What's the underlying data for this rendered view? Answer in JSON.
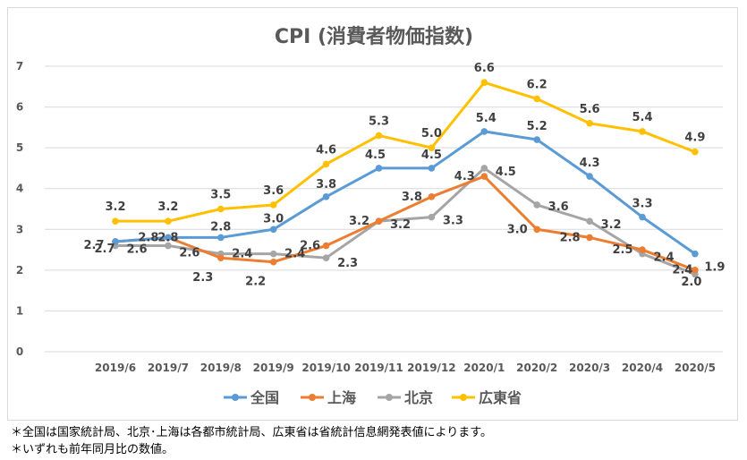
{
  "chart_data": {
    "type": "line",
    "title": "CPI (消費者物価指数)",
    "categories": [
      "2019/6",
      "2019/7",
      "2019/8",
      "2019/9",
      "2019/10",
      "2019/11",
      "2019/12",
      "2020/1",
      "2020/2",
      "2020/3",
      "2020/4",
      "2020/5"
    ],
    "ylim": [
      0,
      7
    ],
    "yticks": [
      0,
      1,
      2,
      3,
      4,
      5,
      6,
      7
    ],
    "grid": true,
    "legend_position": "bottom",
    "series": [
      {
        "name": "全国",
        "color": "#5b9bd5",
        "values": [
          2.7,
          2.8,
          2.8,
          3.0,
          3.8,
          4.5,
          4.5,
          5.4,
          5.2,
          4.3,
          3.3,
          2.4
        ],
        "labels": [
          "2.7",
          "2.8",
          "2.8",
          "3.0",
          "3.8",
          "4.5",
          "4.5",
          "5.4",
          "5.2",
          "4.3",
          "3.3",
          "2.4"
        ]
      },
      {
        "name": "上海",
        "color": "#ed7d31",
        "values": [
          2.7,
          2.8,
          2.3,
          2.2,
          2.6,
          3.2,
          3.8,
          4.3,
          3.0,
          2.8,
          2.5,
          2.0
        ],
        "labels": [
          "2.7",
          "2.8",
          "2.3",
          "2.2",
          "2.6",
          "3.2",
          "3.8",
          "4.3",
          "3.0",
          "2.8",
          "2.5",
          "2.0"
        ]
      },
      {
        "name": "北京",
        "color": "#a5a5a5",
        "values": [
          2.6,
          2.6,
          2.4,
          2.4,
          2.3,
          3.2,
          3.3,
          4.5,
          3.6,
          3.2,
          2.4,
          1.9
        ],
        "labels": [
          "2.6",
          "2.6",
          "2.4",
          "2.4",
          "2.3",
          "3.2",
          "3.3",
          "4.5",
          "3.6",
          "3.2",
          "2.4",
          "1.9"
        ]
      },
      {
        "name": "広東省",
        "color": "#ffc000",
        "values": [
          3.2,
          3.2,
          3.5,
          3.6,
          4.6,
          5.3,
          5.0,
          6.6,
          6.2,
          5.6,
          5.4,
          4.9
        ],
        "labels": [
          "3.2",
          "3.2",
          "3.5",
          "3.6",
          "4.6",
          "5.3",
          "5.0",
          "6.6",
          "6.2",
          "5.6",
          "5.4",
          "4.9"
        ]
      }
    ]
  },
  "notes": [
    "＊全国は国家統計局、北京･上海は各都市統計局、広東省は省統計信息網発表値によります。",
    "＊いずれも前年同月比の数値。"
  ]
}
